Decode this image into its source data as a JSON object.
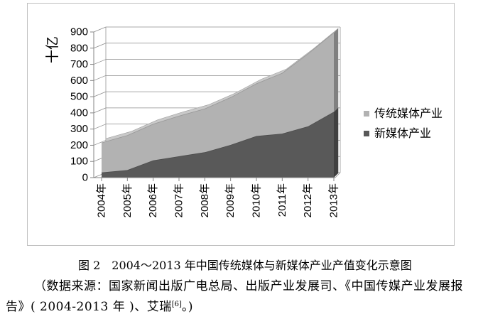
{
  "chart_data": {
    "type": "area",
    "stacked": true,
    "three_d": true,
    "categories": [
      "2004年",
      "2005年",
      "2006年",
      "2007年",
      "2008年",
      "2009年",
      "2010年",
      "2011年",
      "2012年",
      "2013年"
    ],
    "series": [
      {
        "name": "新媒体产业",
        "color": "#595959",
        "values": [
          30,
          45,
          105,
          130,
          155,
          200,
          255,
          270,
          315,
          405
        ]
      },
      {
        "name": "传统媒体产业",
        "color": "#b2b2b2",
        "values": [
          185,
          215,
          225,
          250,
          270,
          295,
          325,
          375,
          450,
          490
        ]
      }
    ],
    "ylabel": "十亿",
    "ylim": [
      0,
      900
    ],
    "yticks": [
      0,
      100,
      200,
      300,
      400,
      500,
      600,
      700,
      800,
      900
    ],
    "grid": true,
    "legend_position": "right"
  },
  "caption": {
    "title": "图 2　2004～2013 年中国传统媒体与新媒体产业产值变化示意图",
    "source_line1": "（数据来源：国家新闻出版广电总局、出版产业发展司、《中国传媒产业发展报",
    "source_line2": "告》( 2004-2013 年 )、艾瑞",
    "source_ref": "[6]",
    "source_end": "。)"
  }
}
